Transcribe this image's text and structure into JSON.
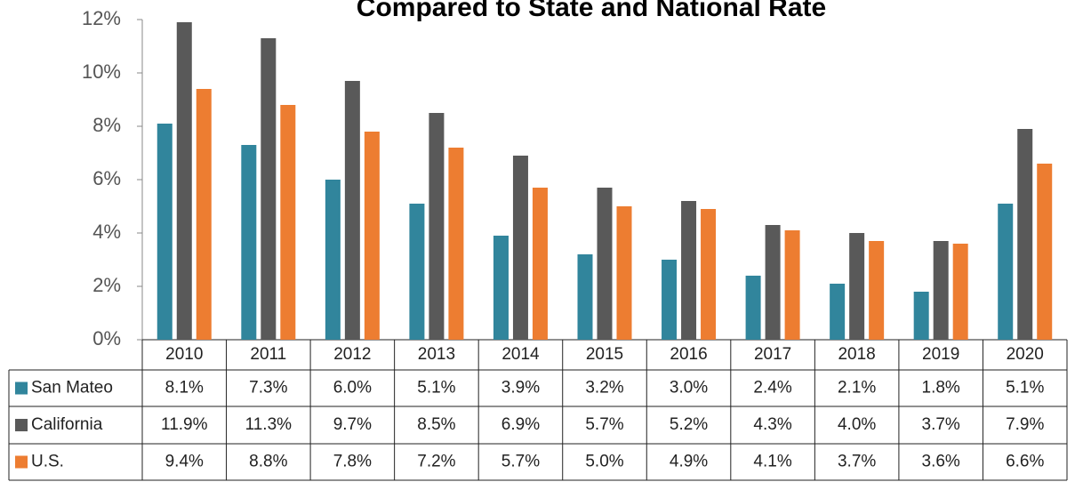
{
  "chart_data": {
    "type": "bar",
    "title": "Compared to State and National Rate",
    "categories": [
      "2010",
      "2011",
      "2012",
      "2013",
      "2014",
      "2015",
      "2016",
      "2017",
      "2018",
      "2019",
      "2020"
    ],
    "series": [
      {
        "name": "San Mateo",
        "color": "#31859c",
        "values": [
          8.1,
          7.3,
          6.0,
          5.1,
          3.9,
          3.2,
          3.0,
          2.4,
          2.1,
          1.8,
          5.1
        ],
        "value_labels": [
          "8.1%",
          "7.3%",
          "6.0%",
          "5.1%",
          "3.9%",
          "3.2%",
          "3.0%",
          "2.4%",
          "2.1%",
          "1.8%",
          "5.1%"
        ]
      },
      {
        "name": "California",
        "color": "#595959",
        "values": [
          11.9,
          11.3,
          9.7,
          8.5,
          6.9,
          5.7,
          5.2,
          4.3,
          4.0,
          3.7,
          7.9
        ],
        "value_labels": [
          "11.9%",
          "11.3%",
          "9.7%",
          "8.5%",
          "6.9%",
          "5.7%",
          "5.2%",
          "4.3%",
          "4.0%",
          "3.7%",
          "7.9%"
        ]
      },
      {
        "name": "U.S.",
        "color": "#ed7d31",
        "values": [
          9.4,
          8.8,
          7.8,
          7.2,
          5.7,
          5.0,
          4.9,
          4.1,
          3.7,
          3.6,
          6.6
        ],
        "value_labels": [
          "9.4%",
          "8.8%",
          "7.8%",
          "7.2%",
          "5.7%",
          "5.0%",
          "4.9%",
          "4.1%",
          "3.7%",
          "3.6%",
          "6.6%"
        ]
      }
    ],
    "ylim": [
      0,
      12
    ],
    "yticks": [
      {
        "value": 0,
        "label": "0%"
      },
      {
        "value": 2,
        "label": "2%"
      },
      {
        "value": 4,
        "label": "4%"
      },
      {
        "value": 6,
        "label": "6%"
      },
      {
        "value": 8,
        "label": "8%"
      },
      {
        "value": 10,
        "label": "10%"
      },
      {
        "value": 12,
        "label": "12%"
      }
    ]
  }
}
